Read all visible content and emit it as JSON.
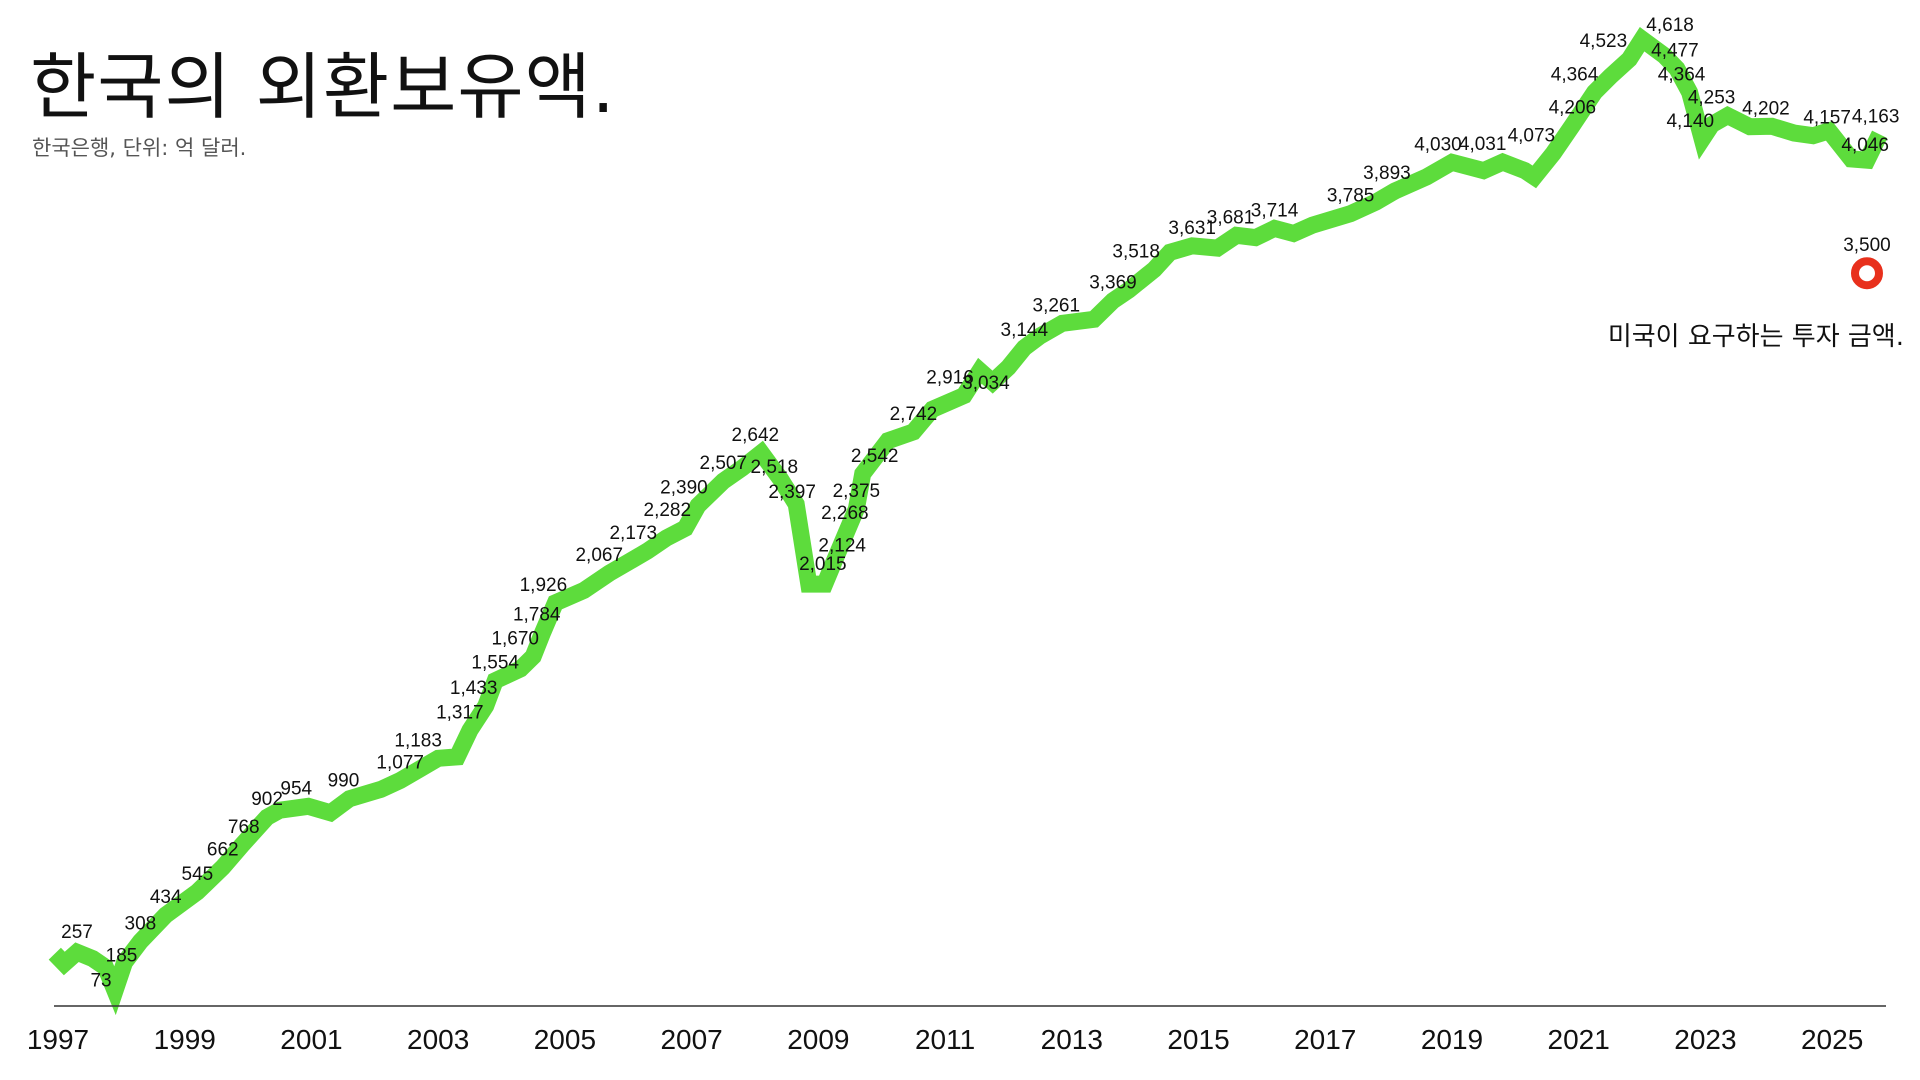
{
  "header": {
    "title": "한국의 외환보유액.",
    "subtitle": "한국은행, 단위: 억 달러."
  },
  "colors": {
    "line": "#5ddc3c",
    "marker": "#e8301c",
    "axis": "#333333"
  },
  "chart_data": {
    "type": "line",
    "title": "한국의 외환보유액.",
    "subtitle": "한국은행, 단위: 억 달러.",
    "xlim": [
      1997,
      2025.85
    ],
    "ylim": [
      0,
      4700
    ],
    "x_ticks": [
      {
        "x": 1997,
        "label": "1997"
      },
      {
        "x": 1999,
        "label": "1999"
      },
      {
        "x": 2001,
        "label": "2001"
      },
      {
        "x": 2003,
        "label": "2003"
      },
      {
        "x": 2005,
        "label": "2005"
      },
      {
        "x": 2007,
        "label": "2007"
      },
      {
        "x": 2009,
        "label": "2009"
      },
      {
        "x": 2011,
        "label": "2011"
      },
      {
        "x": 2013,
        "label": "2013"
      },
      {
        "x": 2015,
        "label": "2015"
      },
      {
        "x": 2017,
        "label": "2017"
      },
      {
        "x": 2019,
        "label": "2019"
      },
      {
        "x": 2021,
        "label": "2021"
      },
      {
        "x": 2023,
        "label": "2023"
      },
      {
        "x": 2025,
        "label": "2025"
      }
    ],
    "series": [
      {
        "points": [
          {
            "x": 1996.95,
            "y": 250
          },
          {
            "x": 1997.1,
            "y": 203
          },
          {
            "x": 1997.3,
            "y": 257
          },
          {
            "x": 1997.55,
            "y": 226
          },
          {
            "x": 1997.75,
            "y": 185
          },
          {
            "x": 1997.9,
            "y": 73
          },
          {
            "x": 1998.05,
            "y": 208
          },
          {
            "x": 1998.3,
            "y": 308
          },
          {
            "x": 1998.7,
            "y": 434
          },
          {
            "x": 1999.2,
            "y": 545
          },
          {
            "x": 1999.6,
            "y": 662
          },
          {
            "x": 1999.9,
            "y": 768
          },
          {
            "x": 2000.3,
            "y": 902
          },
          {
            "x": 2000.5,
            "y": 935
          },
          {
            "x": 2000.95,
            "y": 954
          },
          {
            "x": 2001.3,
            "y": 923
          },
          {
            "x": 2001.6,
            "y": 990
          },
          {
            "x": 2002.1,
            "y": 1035
          },
          {
            "x": 2002.4,
            "y": 1077
          },
          {
            "x": 2002.7,
            "y": 1130
          },
          {
            "x": 2003.0,
            "y": 1183
          },
          {
            "x": 2003.3,
            "y": 1190
          },
          {
            "x": 2003.5,
            "y": 1317
          },
          {
            "x": 2003.75,
            "y": 1433
          },
          {
            "x": 2003.9,
            "y": 1554
          },
          {
            "x": 2004.3,
            "y": 1610
          },
          {
            "x": 2004.5,
            "y": 1670
          },
          {
            "x": 2004.65,
            "y": 1784
          },
          {
            "x": 2004.85,
            "y": 1926
          },
          {
            "x": 2005.3,
            "y": 1985
          },
          {
            "x": 2005.7,
            "y": 2067
          },
          {
            "x": 2006.0,
            "y": 2120
          },
          {
            "x": 2006.3,
            "y": 2173
          },
          {
            "x": 2006.6,
            "y": 2235
          },
          {
            "x": 2006.9,
            "y": 2282
          },
          {
            "x": 2007.1,
            "y": 2390
          },
          {
            "x": 2007.5,
            "y": 2507
          },
          {
            "x": 2007.8,
            "y": 2570
          },
          {
            "x": 2008.1,
            "y": 2642
          },
          {
            "x": 2008.4,
            "y": 2518
          },
          {
            "x": 2008.65,
            "y": 2397
          },
          {
            "x": 2008.85,
            "y": 2015
          },
          {
            "x": 2009.1,
            "y": 2015
          },
          {
            "x": 2009.25,
            "y": 2124
          },
          {
            "x": 2009.45,
            "y": 2268
          },
          {
            "x": 2009.6,
            "y": 2375
          },
          {
            "x": 2009.7,
            "y": 2542
          },
          {
            "x": 2010.1,
            "y": 2700
          },
          {
            "x": 2010.5,
            "y": 2742
          },
          {
            "x": 2010.8,
            "y": 2850
          },
          {
            "x": 2011.3,
            "y": 2916
          },
          {
            "x": 2011.55,
            "y": 3034
          },
          {
            "x": 2011.75,
            "y": 2980
          },
          {
            "x": 2012.0,
            "y": 3050
          },
          {
            "x": 2012.25,
            "y": 3144
          },
          {
            "x": 2012.5,
            "y": 3200
          },
          {
            "x": 2012.85,
            "y": 3261
          },
          {
            "x": 2013.35,
            "y": 3280
          },
          {
            "x": 2013.65,
            "y": 3369
          },
          {
            "x": 2013.9,
            "y": 3420
          },
          {
            "x": 2014.3,
            "y": 3518
          },
          {
            "x": 2014.55,
            "y": 3600
          },
          {
            "x": 2014.9,
            "y": 3631
          },
          {
            "x": 2015.3,
            "y": 3620
          },
          {
            "x": 2015.6,
            "y": 3681
          },
          {
            "x": 2015.9,
            "y": 3670
          },
          {
            "x": 2016.2,
            "y": 3714
          },
          {
            "x": 2016.5,
            "y": 3690
          },
          {
            "x": 2016.8,
            "y": 3730
          },
          {
            "x": 2017.4,
            "y": 3785
          },
          {
            "x": 2017.8,
            "y": 3840
          },
          {
            "x": 2018.1,
            "y": 3893
          },
          {
            "x": 2018.6,
            "y": 3960
          },
          {
            "x": 2019.0,
            "y": 4030
          },
          {
            "x": 2019.5,
            "y": 3990
          },
          {
            "x": 2019.8,
            "y": 4031
          },
          {
            "x": 2020.15,
            "y": 3990
          },
          {
            "x": 2020.3,
            "y": 3960
          },
          {
            "x": 2020.6,
            "y": 4073
          },
          {
            "x": 2020.9,
            "y": 4206
          },
          {
            "x": 2021.25,
            "y": 4364
          },
          {
            "x": 2021.5,
            "y": 4440
          },
          {
            "x": 2021.8,
            "y": 4523
          },
          {
            "x": 2022.0,
            "y": 4618
          },
          {
            "x": 2022.35,
            "y": 4540
          },
          {
            "x": 2022.55,
            "y": 4477
          },
          {
            "x": 2022.75,
            "y": 4364
          },
          {
            "x": 2022.95,
            "y": 4140
          },
          {
            "x": 2023.1,
            "y": 4210
          },
          {
            "x": 2023.35,
            "y": 4253
          },
          {
            "x": 2023.7,
            "y": 4200
          },
          {
            "x": 2024.05,
            "y": 4202
          },
          {
            "x": 2024.4,
            "y": 4170
          },
          {
            "x": 2024.7,
            "y": 4157
          },
          {
            "x": 2024.95,
            "y": 4180
          },
          {
            "x": 2025.3,
            "y": 4046
          },
          {
            "x": 2025.55,
            "y": 4040
          },
          {
            "x": 2025.75,
            "y": 4163
          }
        ]
      }
    ],
    "data_labels": [
      {
        "text": "257",
        "x": 1997.3,
        "y": 257,
        "dx": 0,
        "dy": -14
      },
      {
        "text": "185",
        "x": 1997.75,
        "y": 185,
        "dx": 16,
        "dy": -6
      },
      {
        "text": "73",
        "x": 1997.9,
        "y": 73,
        "dx": -14,
        "dy": -4
      },
      {
        "text": "308",
        "x": 1998.3,
        "y": 308,
        "dx": 0,
        "dy": -12
      },
      {
        "text": "434",
        "x": 1998.7,
        "y": 434,
        "dx": 0,
        "dy": -12
      },
      {
        "text": "545",
        "x": 1999.2,
        "y": 545,
        "dx": 0,
        "dy": -12
      },
      {
        "text": "662",
        "x": 1999.6,
        "y": 662,
        "dx": 0,
        "dy": -12
      },
      {
        "text": "768",
        "x": 1999.9,
        "y": 768,
        "dx": 2,
        "dy": -12
      },
      {
        "text": "902",
        "x": 2000.3,
        "y": 902,
        "dx": 0,
        "dy": -12
      },
      {
        "text": "954",
        "x": 2000.95,
        "y": 954,
        "dx": -12,
        "dy": -12
      },
      {
        "text": "990",
        "x": 2001.6,
        "y": 990,
        "dx": -6,
        "dy": -12
      },
      {
        "text": "1,077",
        "x": 2002.4,
        "y": 1077,
        "dx": 0,
        "dy": -12
      },
      {
        "text": "1,183",
        "x": 2003.0,
        "y": 1183,
        "dx": -20,
        "dy": -12
      },
      {
        "text": "1,317",
        "x": 2003.5,
        "y": 1317,
        "dx": -10,
        "dy": -12
      },
      {
        "text": "1,433",
        "x": 2003.75,
        "y": 1433,
        "dx": -12,
        "dy": -12
      },
      {
        "text": "1,554",
        "x": 2003.9,
        "y": 1554,
        "dx": 0,
        "dy": -12
      },
      {
        "text": "1,670",
        "x": 2004.5,
        "y": 1670,
        "dx": -18,
        "dy": -12
      },
      {
        "text": "1,784",
        "x": 2004.65,
        "y": 1784,
        "dx": -6,
        "dy": -12
      },
      {
        "text": "1,926",
        "x": 2004.85,
        "y": 1926,
        "dx": -12,
        "dy": -12
      },
      {
        "text": "2,067",
        "x": 2005.7,
        "y": 2067,
        "dx": -10,
        "dy": -12
      },
      {
        "text": "2,173",
        "x": 2006.3,
        "y": 2173,
        "dx": -14,
        "dy": -12
      },
      {
        "text": "2,282",
        "x": 2006.9,
        "y": 2282,
        "dx": -18,
        "dy": -12
      },
      {
        "text": "2,390",
        "x": 2007.1,
        "y": 2390,
        "dx": -14,
        "dy": -12
      },
      {
        "text": "2,507",
        "x": 2007.5,
        "y": 2507,
        "dx": 0,
        "dy": -12
      },
      {
        "text": "2,642",
        "x": 2008.1,
        "y": 2642,
        "dx": -6,
        "dy": -12
      },
      {
        "text": "2,518",
        "x": 2008.4,
        "y": 2518,
        "dx": -6,
        "dy": -6
      },
      {
        "text": "2,397",
        "x": 2008.65,
        "y": 2397,
        "dx": -4,
        "dy": -6
      },
      {
        "text": "2,015",
        "x": 2008.85,
        "y": 2015,
        "dx": 14,
        "dy": -14
      },
      {
        "text": "2,124",
        "x": 2009.25,
        "y": 2124,
        "dx": 8,
        "dy": -10
      },
      {
        "text": "2,268",
        "x": 2009.45,
        "y": 2268,
        "dx": -2,
        "dy": -12
      },
      {
        "text": "2,375",
        "x": 2009.6,
        "y": 2375,
        "dx": 0,
        "dy": -12
      },
      {
        "text": "2,542",
        "x": 2009.7,
        "y": 2542,
        "dx": 12,
        "dy": -12
      },
      {
        "text": "2,742",
        "x": 2010.5,
        "y": 2742,
        "dx": 0,
        "dy": -12
      },
      {
        "text": "2,916",
        "x": 2011.3,
        "y": 2916,
        "dx": -14,
        "dy": -12
      },
      {
        "text": "3,034",
        "x": 2011.55,
        "y": 3034,
        "dx": 6,
        "dy": 18
      },
      {
        "text": "3,144",
        "x": 2012.25,
        "y": 3144,
        "dx": 0,
        "dy": -12
      },
      {
        "text": "3,261",
        "x": 2012.85,
        "y": 3261,
        "dx": -6,
        "dy": -12
      },
      {
        "text": "3,369",
        "x": 2013.65,
        "y": 3369,
        "dx": 0,
        "dy": -12
      },
      {
        "text": "3,518",
        "x": 2014.3,
        "y": 3518,
        "dx": -18,
        "dy": -12
      },
      {
        "text": "3,631",
        "x": 2014.9,
        "y": 3631,
        "dx": 0,
        "dy": -12
      },
      {
        "text": "3,681",
        "x": 2015.6,
        "y": 3681,
        "dx": -6,
        "dy": -12
      },
      {
        "text": "3,714",
        "x": 2016.2,
        "y": 3714,
        "dx": 0,
        "dy": -12
      },
      {
        "text": "3,785",
        "x": 2017.4,
        "y": 3785,
        "dx": 0,
        "dy": -12
      },
      {
        "text": "3,893",
        "x": 2018.1,
        "y": 3893,
        "dx": -8,
        "dy": -12
      },
      {
        "text": "4,030",
        "x": 2019.0,
        "y": 4030,
        "dx": -14,
        "dy": -12
      },
      {
        "text": "4,031",
        "x": 2019.8,
        "y": 4031,
        "dx": -20,
        "dy": -12
      },
      {
        "text": "4,073",
        "x": 2020.6,
        "y": 4073,
        "dx": -22,
        "dy": -12
      },
      {
        "text": "4,206",
        "x": 2020.9,
        "y": 4206,
        "dx": 0,
        "dy": -12
      },
      {
        "text": "4,364",
        "x": 2021.25,
        "y": 4364,
        "dx": -20,
        "dy": -12
      },
      {
        "text": "4,523",
        "x": 2021.8,
        "y": 4523,
        "dx": -26,
        "dy": -12
      },
      {
        "text": "4,618",
        "x": 2022.0,
        "y": 4618,
        "dx": 28,
        "dy": -8
      },
      {
        "text": "4,477",
        "x": 2022.55,
        "y": 4477,
        "dx": -2,
        "dy": -12
      },
      {
        "text": "4,364",
        "x": 2022.75,
        "y": 4364,
        "dx": -8,
        "dy": -12
      },
      {
        "text": "4,140",
        "x": 2022.95,
        "y": 4140,
        "dx": -12,
        "dy": -12
      },
      {
        "text": "4,253",
        "x": 2023.35,
        "y": 4253,
        "dx": -16,
        "dy": -12
      },
      {
        "text": "4,202",
        "x": 2024.05,
        "y": 4202,
        "dx": -6,
        "dy": -12
      },
      {
        "text": "4,157",
        "x": 2024.7,
        "y": 4157,
        "dx": 14,
        "dy": -12
      },
      {
        "text": "4,163",
        "x": 2025.75,
        "y": 4163,
        "dx": -4,
        "dy": -12
      },
      {
        "text": "4,046",
        "x": 2025.3,
        "y": 4046,
        "dx": 14,
        "dy": -8
      }
    ],
    "marker": {
      "x": 2025.55,
      "y": 3500,
      "label": "3,500"
    },
    "annotation": "미국이 요구하는 투자 금액."
  }
}
